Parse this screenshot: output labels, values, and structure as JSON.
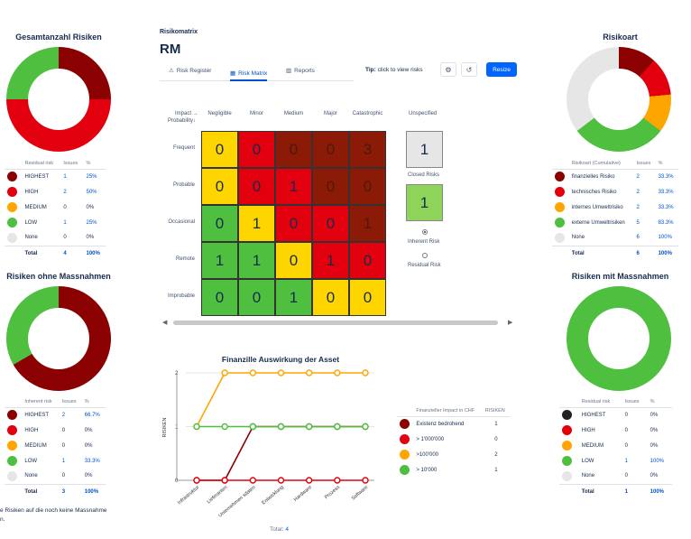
{
  "panels": {
    "total": {
      "title": "Gesamtanzahl Risiken",
      "headers": [
        "Residual risk",
        "Issues",
        "%"
      ],
      "rows": [
        {
          "label": "HIGHEST",
          "issues": "1",
          "pct": "25%",
          "color": "#8b0000"
        },
        {
          "label": "HIGH",
          "issues": "2",
          "pct": "50%",
          "color": "#e2000f"
        },
        {
          "label": "MEDIUM",
          "issues": "0",
          "pct": "0%",
          "color": "#ffa500"
        },
        {
          "label": "LOW",
          "issues": "1",
          "pct": "25%",
          "color": "#4fbf3f"
        },
        {
          "label": "None",
          "issues": "0",
          "pct": "0%",
          "color": "#e6e6e6"
        }
      ],
      "total_label": "Total",
      "total_issues": "4",
      "total_pct": "100%"
    },
    "ohne": {
      "title": "Risiken ohne Massnahmen",
      "headers": [
        "Inherent risk",
        "Issues",
        "%"
      ],
      "rows": [
        {
          "label": "HIGHEST",
          "issues": "2",
          "pct": "66.7%",
          "color": "#8b0000"
        },
        {
          "label": "HIGH",
          "issues": "0",
          "pct": "0%",
          "color": "#e2000f"
        },
        {
          "label": "MEDIUM",
          "issues": "0",
          "pct": "0%",
          "color": "#ffa500"
        },
        {
          "label": "LOW",
          "issues": "1",
          "pct": "33.3%",
          "color": "#4fbf3f"
        },
        {
          "label": "None",
          "issues": "0",
          "pct": "0%",
          "color": "#e6e6e6"
        }
      ],
      "total_label": "Total",
      "total_issues": "3",
      "total_pct": "100%",
      "footnote_1": "e Risiken auf die noch keine Massnahme",
      "footnote_2": "n."
    },
    "art": {
      "title": "Risikoart",
      "headers": [
        "Risikoart (Cumulative)",
        "Issues",
        "%"
      ],
      "rows": [
        {
          "label": "finanzielles Risiko",
          "issues": "2",
          "pct": "33.3%",
          "color": "#8b0000"
        },
        {
          "label": "technisches Risiko",
          "issues": "2",
          "pct": "33.3%",
          "color": "#e2000f"
        },
        {
          "label": "internes Umweltrisiko",
          "issues": "2",
          "pct": "33.3%",
          "color": "#ffa500"
        },
        {
          "label": "externe Umweltrisiken",
          "issues": "5",
          "pct": "83.3%",
          "color": "#4fbf3f"
        },
        {
          "label": "None",
          "issues": "6",
          "pct": "100%",
          "color": "#e6e6e6"
        }
      ],
      "total_label": "Total",
      "total_issues": "6",
      "total_pct": "100%"
    },
    "mit": {
      "title": "Risiken mit Massnahmen",
      "headers": [
        "Residual risk",
        "Issues",
        "%"
      ],
      "rows": [
        {
          "label": "HIGHEST",
          "issues": "0",
          "pct": "0%",
          "color": "#222222"
        },
        {
          "label": "HIGH",
          "issues": "0",
          "pct": "0%",
          "color": "#e2000f"
        },
        {
          "label": "MEDIUM",
          "issues": "0",
          "pct": "0%",
          "color": "#ffa500"
        },
        {
          "label": "LOW",
          "issues": "1",
          "pct": "100%",
          "color": "#4fbf3f"
        },
        {
          "label": "None",
          "issues": "0",
          "pct": "0%",
          "color": "#e6e6e6"
        }
      ],
      "total_label": "Total",
      "total_issues": "1",
      "total_pct": "100%"
    }
  },
  "donuts": {
    "total": [
      {
        "value": 1,
        "color": "#8b0000"
      },
      {
        "value": 2,
        "color": "#e2000f"
      },
      {
        "value": 1,
        "color": "#4fbf3f"
      }
    ],
    "ohne": [
      {
        "value": 2,
        "color": "#8b0000"
      },
      {
        "value": 1,
        "color": "#4fbf3f"
      }
    ],
    "art": [
      {
        "value": 2,
        "color": "#8b0000"
      },
      {
        "value": 2,
        "color": "#e2000f"
      },
      {
        "value": 2,
        "color": "#ffa500"
      },
      {
        "value": 5,
        "color": "#4fbf3f"
      },
      {
        "value": 6,
        "color": "#e6e6e6"
      }
    ],
    "mit": [
      {
        "value": 1,
        "color": "#4fbf3f"
      }
    ]
  },
  "header": {
    "breadcrumb": "Risikomatrix",
    "title": "RM",
    "tabs": [
      {
        "label": "Risk Register",
        "icon": "warning-icon"
      },
      {
        "label": "Risk Matrix",
        "icon": "grid-icon"
      },
      {
        "label": "Reports",
        "icon": "bar-chart-icon"
      }
    ],
    "tip_label": "Tip:",
    "tip_text": "click to view risks",
    "resize_label": "Resize"
  },
  "matrix": {
    "corner_top": "Impact →",
    "corner_bottom": "Probability↓",
    "impacts": [
      "Negligible",
      "Minor",
      "Medium",
      "Major",
      "Catastrophic"
    ],
    "probabilities": [
      "Frequent",
      "Probable",
      "Occasional",
      "Remote",
      "Improbable"
    ],
    "cells": [
      [
        {
          "v": "0",
          "c": "yellow"
        },
        {
          "v": "0",
          "c": "red"
        },
        {
          "v": "0",
          "c": "dark"
        },
        {
          "v": "0",
          "c": "dark"
        },
        {
          "v": "3",
          "c": "dark"
        }
      ],
      [
        {
          "v": "0",
          "c": "yellow"
        },
        {
          "v": "0",
          "c": "red"
        },
        {
          "v": "1",
          "c": "red"
        },
        {
          "v": "0",
          "c": "dark"
        },
        {
          "v": "0",
          "c": "dark"
        }
      ],
      [
        {
          "v": "0",
          "c": "green"
        },
        {
          "v": "1",
          "c": "yellow"
        },
        {
          "v": "0",
          "c": "red"
        },
        {
          "v": "0",
          "c": "red"
        },
        {
          "v": "1",
          "c": "dark"
        }
      ],
      [
        {
          "v": "1",
          "c": "green"
        },
        {
          "v": "1",
          "c": "green"
        },
        {
          "v": "0",
          "c": "yellow"
        },
        {
          "v": "1",
          "c": "red"
        },
        {
          "v": "0",
          "c": "red"
        }
      ],
      [
        {
          "v": "0",
          "c": "green"
        },
        {
          "v": "0",
          "c": "green"
        },
        {
          "v": "1",
          "c": "green"
        },
        {
          "v": "0",
          "c": "yellow"
        },
        {
          "v": "0",
          "c": "yellow"
        }
      ]
    ],
    "unspecified_label": "Unspecified",
    "unspecified_value": "1",
    "closed_label": "Closed Risks",
    "closed_value": "1",
    "inherent_label": "Inherent Risk",
    "residual_label": "Residual Risk"
  },
  "chart_data": {
    "type": "line",
    "title": "Finanzille Auswirkung der Asset",
    "ylabel": "RISIKEN",
    "categories": [
      "Infrastruktur",
      "Lieferanten",
      "Unternehmen sdaten",
      "Entwicklung",
      "Hardware",
      "Prozess",
      "Software"
    ],
    "ylim": [
      0,
      2
    ],
    "yticks": [
      "0",
      "1",
      "2"
    ],
    "series": [
      {
        "name": "Existenz bedrohend",
        "color": "#8b0000",
        "values": [
          0,
          0,
          1,
          1,
          1,
          1,
          1
        ]
      },
      {
        "name": "> 1'000'000",
        "color": "#e2000f",
        "values": [
          0,
          0,
          0,
          0,
          0,
          0,
          0
        ]
      },
      {
        "name": ">100'000",
        "color": "#ffa500",
        "values": [
          1,
          2,
          2,
          2,
          2,
          2,
          2
        ]
      },
      {
        "name": "> 10'000",
        "color": "#4fbf3f",
        "values": [
          1,
          1,
          1,
          1,
          1,
          1,
          1
        ]
      }
    ],
    "legend_headers": [
      "Finanzieller Impact in CHF",
      "RISIKEN"
    ],
    "legend_counts": [
      "1",
      "0",
      "2",
      "1"
    ],
    "total_label": "Total:",
    "total_value": "4"
  }
}
